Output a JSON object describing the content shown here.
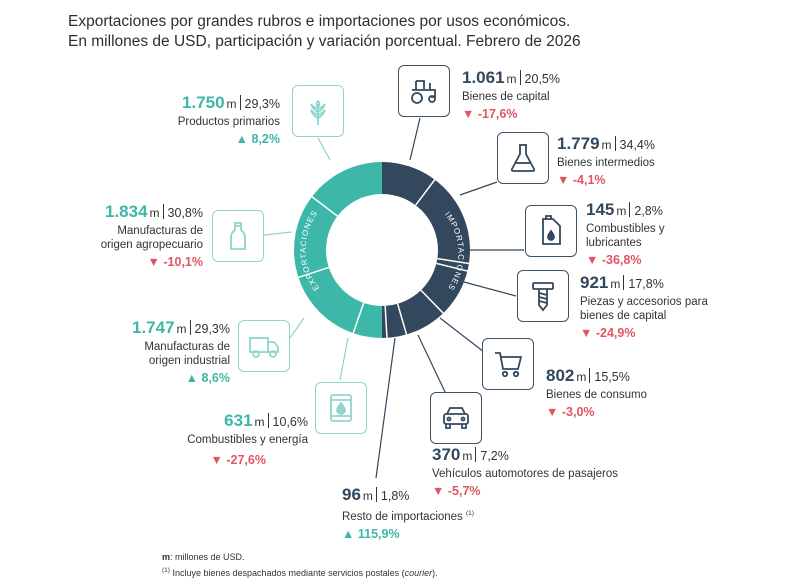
{
  "title_line1": "Exportaciones por grandes rubros e importaciones por usos económicos.",
  "title_line2": "En millones de USD, participación y variación porcentual. Febrero de 2026",
  "ring": {
    "exports_label": "EXPORTACIONES",
    "imports_label": "IMPORTACIONES"
  },
  "colors": {
    "exports": "#3cb7a8",
    "imports": "#33485c",
    "positive": "#3cb7a8",
    "negative": "#e05562"
  },
  "exports": [
    {
      "value": "1.750",
      "unit": "m",
      "share": "29,3%",
      "desc": "Productos primarios",
      "change": "8,2%",
      "dir": "up",
      "icon": "wheat-icon"
    },
    {
      "value": "1.834",
      "unit": "m",
      "share": "30,8%",
      "desc": "Manufacturas de\norigen agropecuario",
      "change": "-10,1%",
      "dir": "down",
      "icon": "bottle-icon"
    },
    {
      "value": "1.747",
      "unit": "m",
      "share": "29,3%",
      "desc": "Manufacturas de\norigen industrial",
      "change": "8,6%",
      "dir": "up",
      "icon": "truck-icon"
    },
    {
      "value": "631",
      "unit": "m",
      "share": "10,6%",
      "desc": "Combustibles y energía",
      "change": "-27,6%",
      "dir": "down",
      "icon": "oil-barrel-icon"
    }
  ],
  "imports": [
    {
      "value": "1.061",
      "unit": "m",
      "share": "20,5%",
      "desc": "Bienes de capital",
      "change": "-17,6%",
      "dir": "down",
      "icon": "tractor-icon"
    },
    {
      "value": "1.779",
      "unit": "m",
      "share": "34,4%",
      "desc": "Bienes intermedios",
      "change": "-4,1%",
      "dir": "down",
      "icon": "flask-icon"
    },
    {
      "value": "145",
      "unit": "m",
      "share": "2,8%",
      "desc": "Combustibles y\nlubricantes",
      "change": "-36,8%",
      "dir": "down",
      "icon": "fuel-can-icon"
    },
    {
      "value": "921",
      "unit": "m",
      "share": "17,8%",
      "desc": "Piezas y accesorios para\nbienes de capital",
      "change": "-24,9%",
      "dir": "down",
      "icon": "screw-icon"
    },
    {
      "value": "802",
      "unit": "m",
      "share": "15,5%",
      "desc": "Bienes de consumo",
      "change": "-3,0%",
      "dir": "down",
      "icon": "shopping-cart-icon"
    },
    {
      "value": "370",
      "unit": "m",
      "share": "7,2%",
      "desc": "Vehículos automotores de pasajeros",
      "change": "-5,7%",
      "dir": "down",
      "icon": "car-icon"
    },
    {
      "value": "96",
      "unit": "m",
      "share": "1,8%",
      "desc": "Resto de importaciones",
      "note": "(1)",
      "change": "115,9%",
      "dir": "up",
      "icon": ""
    }
  ],
  "footer": {
    "unit_key": "m",
    "unit_text": ": millones de USD.",
    "note_mark": "(1)",
    "note_text": "Incluye bienes despachados mediante servicios postales (",
    "note_italic": "courier",
    "note_end": ")."
  }
}
